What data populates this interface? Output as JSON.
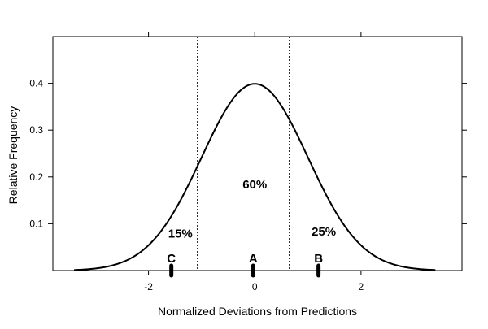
{
  "chart_data": {
    "type": "line",
    "title": "",
    "xlabel": "Normalized Deviations from Predictions",
    "ylabel": "Relative Frequency",
    "xlim": [
      -3.8,
      3.9
    ],
    "ylim": [
      0,
      0.5
    ],
    "x_ticks": [
      -2,
      0,
      2
    ],
    "x_tick_labels": [
      "-2",
      "0",
      "2"
    ],
    "y_ticks": [
      0.1,
      0.2,
      0.3,
      0.4
    ],
    "y_tick_labels": [
      "0.1",
      "0.2",
      "0.3",
      "0.4"
    ],
    "grid": false,
    "curve": {
      "distribution": "standard normal density",
      "mean": 0,
      "sd": 1,
      "x_range": [
        -3.4,
        3.4
      ],
      "peak": 0.4
    },
    "vertical_lines": [
      {
        "x": -1.08,
        "style": "dotted"
      },
      {
        "x": 0.65,
        "style": "dotted"
      }
    ],
    "regions": [
      {
        "label": "15%",
        "x": -1.4,
        "y": 0.07
      },
      {
        "label": "60%",
        "x": 0.0,
        "y": 0.175
      },
      {
        "label": "25%",
        "x": 1.3,
        "y": 0.075
      }
    ],
    "points": [
      {
        "label": "A",
        "x": -0.03,
        "y": 0
      },
      {
        "label": "B",
        "x": 1.2,
        "y": 0
      },
      {
        "label": "C",
        "x": -1.57,
        "y": 0
      }
    ]
  }
}
